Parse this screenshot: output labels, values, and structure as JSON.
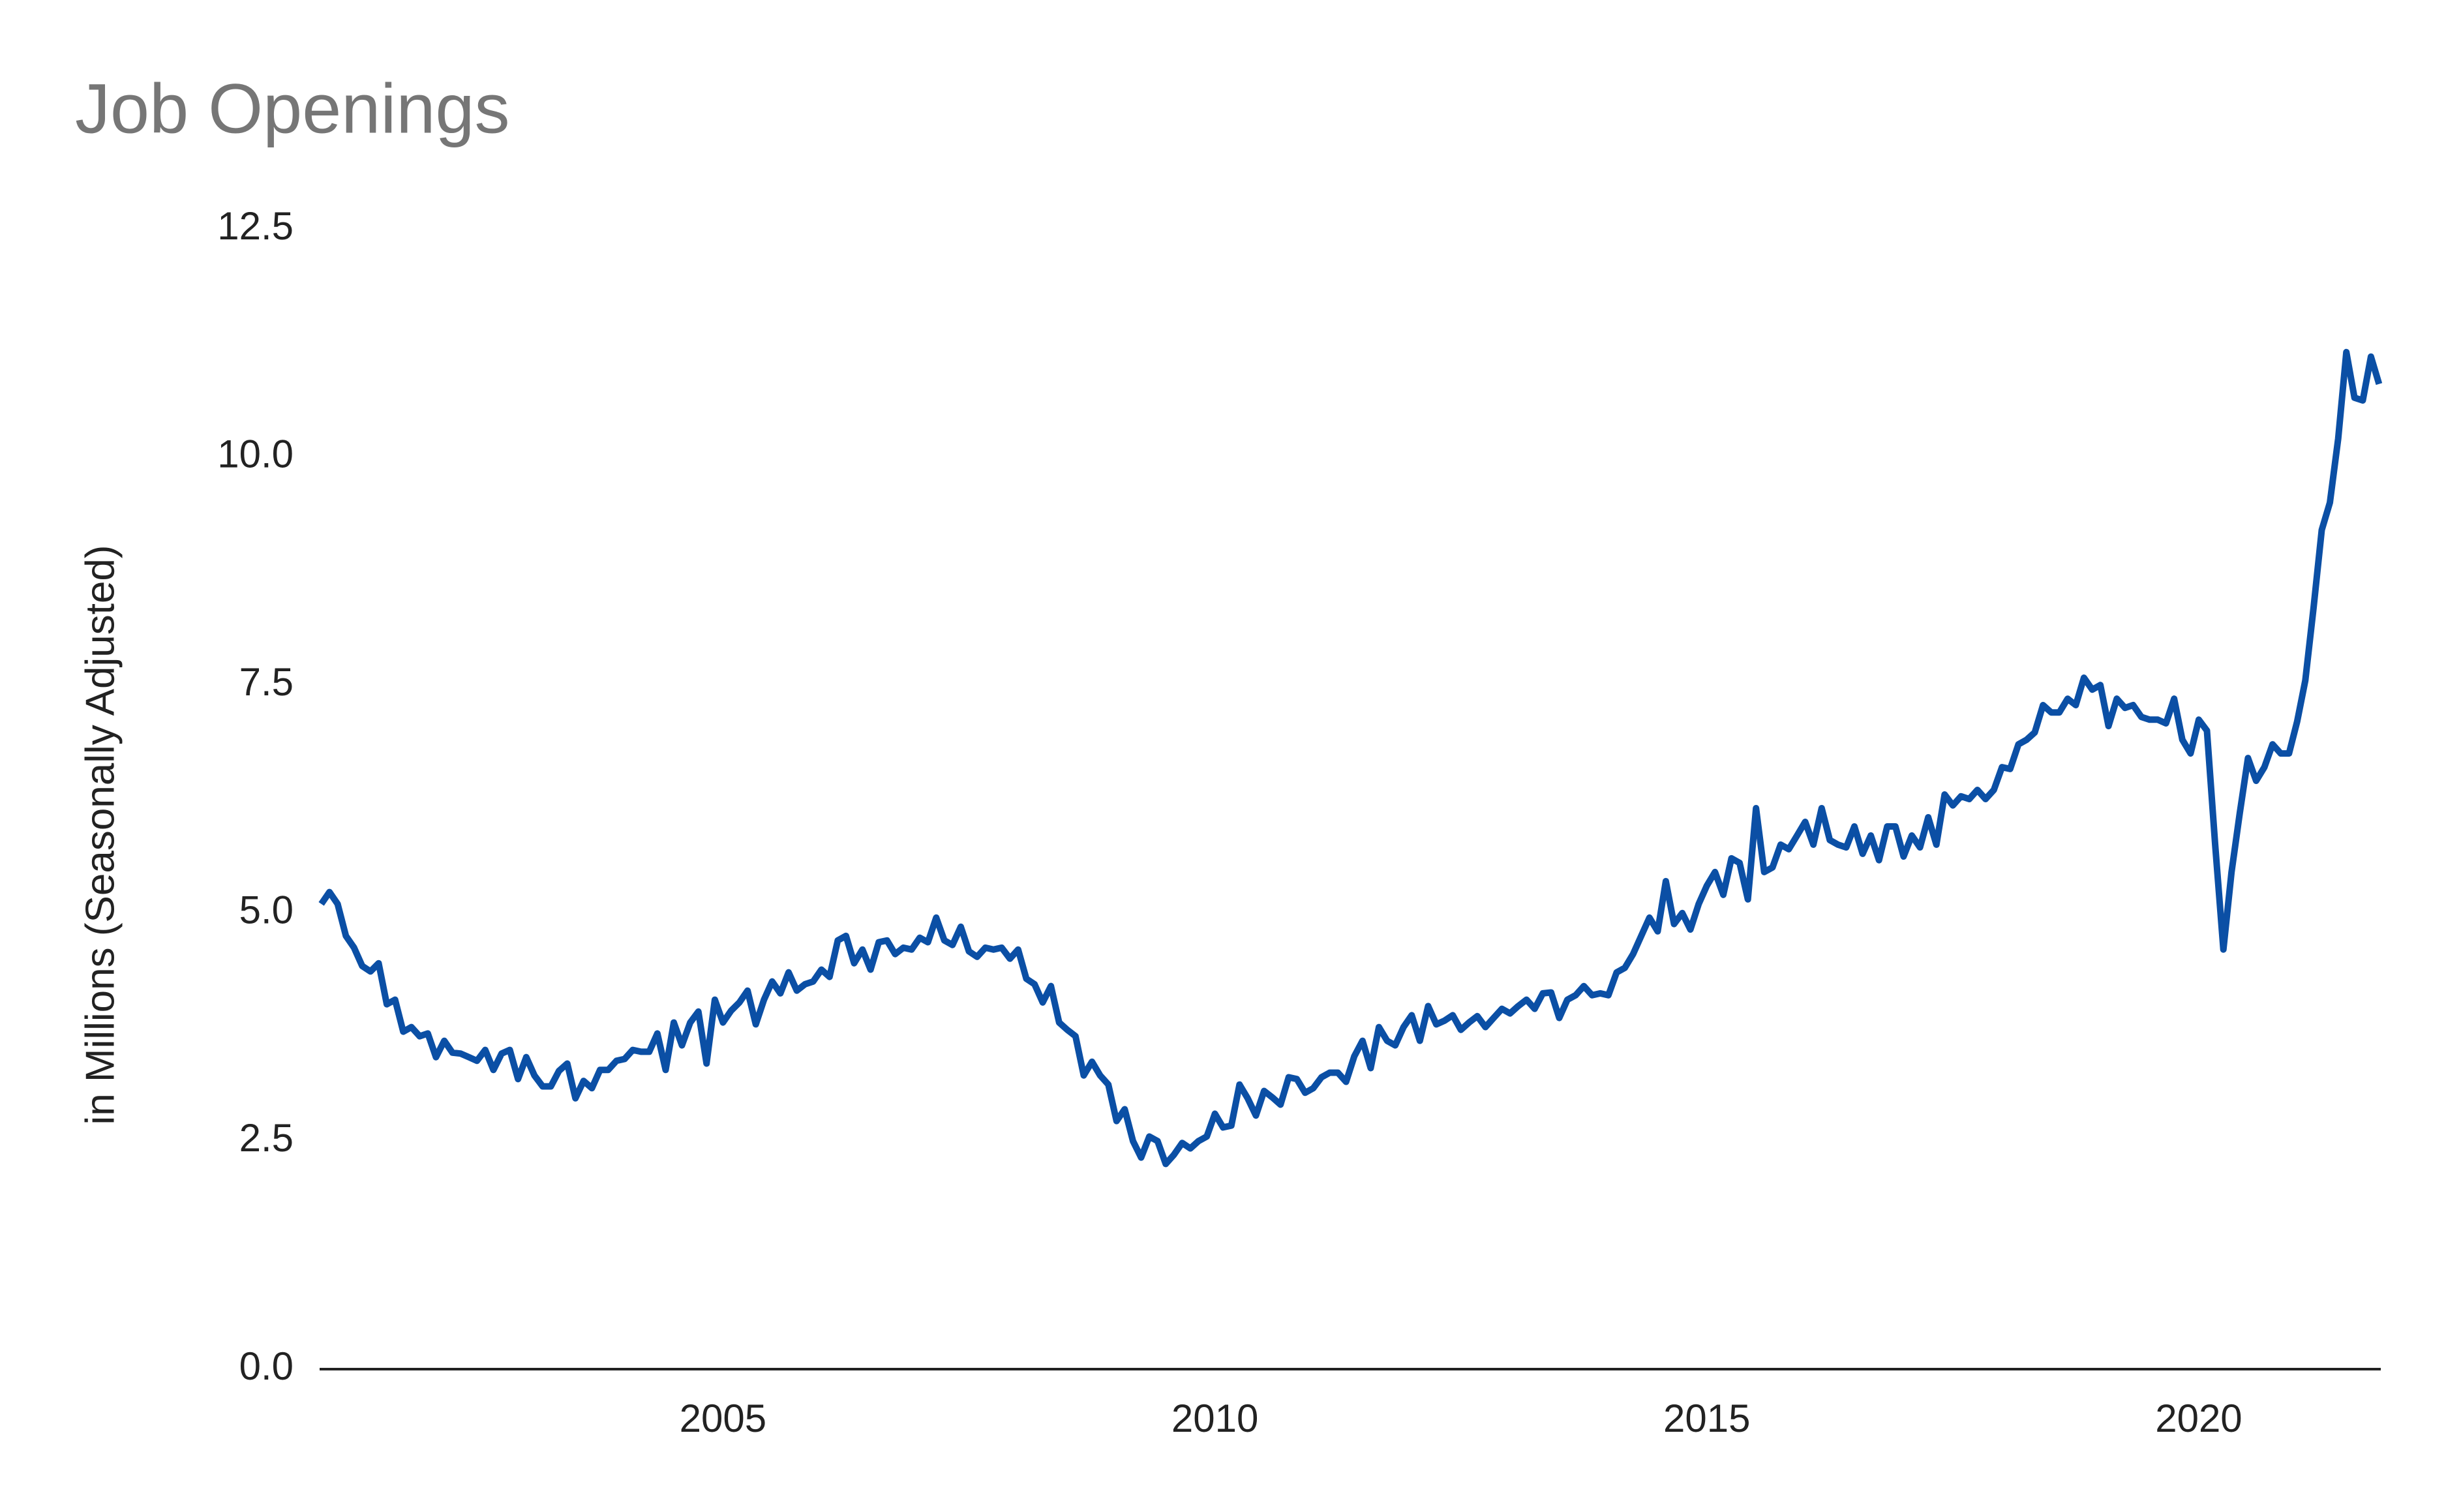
{
  "chart_data": {
    "type": "line",
    "title": "Job Openings",
    "ylabel": "in Millions (Seasonally Adjusted)",
    "color": "#0b4fa5",
    "xlim": [
      2000.9,
      2021.85
    ],
    "xticks": [
      2005,
      2010,
      2015,
      2020
    ],
    "ylim": [
      0,
      12.5
    ],
    "yticks": [
      {
        "value": 0,
        "label": "0.0"
      },
      2.5,
      {
        "value": 5,
        "label": "5.0"
      },
      7.5,
      {
        "value": 10,
        "label": "10.0"
      },
      12.5
    ],
    "grid": false,
    "x": [
      2000.917,
      2001,
      2001.083,
      2001.167,
      2001.25,
      2001.333,
      2001.417,
      2001.5,
      2001.583,
      2001.667,
      2001.75,
      2001.833,
      2001.917,
      2002,
      2002.083,
      2002.167,
      2002.25,
      2002.333,
      2002.417,
      2002.5,
      2002.583,
      2002.667,
      2002.75,
      2002.833,
      2002.917,
      2003,
      2003.083,
      2003.167,
      2003.25,
      2003.333,
      2003.417,
      2003.5,
      2003.583,
      2003.667,
      2003.75,
      2003.833,
      2003.917,
      2004,
      2004.083,
      2004.167,
      2004.25,
      2004.333,
      2004.417,
      2004.5,
      2004.583,
      2004.667,
      2004.75,
      2004.833,
      2004.917,
      2005,
      2005.083,
      2005.167,
      2005.25,
      2005.333,
      2005.417,
      2005.5,
      2005.583,
      2005.667,
      2005.75,
      2005.833,
      2005.917,
      2006,
      2006.083,
      2006.167,
      2006.25,
      2006.333,
      2006.417,
      2006.5,
      2006.583,
      2006.667,
      2006.75,
      2006.833,
      2006.917,
      2007,
      2007.083,
      2007.167,
      2007.25,
      2007.333,
      2007.417,
      2007.5,
      2007.583,
      2007.667,
      2007.75,
      2007.833,
      2007.917,
      2008,
      2008.083,
      2008.167,
      2008.25,
      2008.333,
      2008.417,
      2008.5,
      2008.583,
      2008.667,
      2008.75,
      2008.833,
      2008.917,
      2009,
      2009.083,
      2009.167,
      2009.25,
      2009.333,
      2009.417,
      2009.5,
      2009.583,
      2009.667,
      2009.75,
      2009.833,
      2009.917,
      2010,
      2010.083,
      2010.167,
      2010.25,
      2010.333,
      2010.417,
      2010.5,
      2010.583,
      2010.667,
      2010.75,
      2010.833,
      2010.917,
      2011,
      2011.083,
      2011.167,
      2011.25,
      2011.333,
      2011.417,
      2011.5,
      2011.583,
      2011.667,
      2011.75,
      2011.833,
      2011.917,
      2012,
      2012.083,
      2012.167,
      2012.25,
      2012.333,
      2012.417,
      2012.5,
      2012.583,
      2012.667,
      2012.75,
      2012.833,
      2012.917,
      2013,
      2013.083,
      2013.167,
      2013.25,
      2013.333,
      2013.417,
      2013.5,
      2013.583,
      2013.667,
      2013.75,
      2013.833,
      2013.917,
      2014,
      2014.083,
      2014.167,
      2014.25,
      2014.333,
      2014.417,
      2014.5,
      2014.583,
      2014.667,
      2014.75,
      2014.833,
      2014.917,
      2015,
      2015.083,
      2015.167,
      2015.25,
      2015.333,
      2015.417,
      2015.5,
      2015.583,
      2015.667,
      2015.75,
      2015.833,
      2015.917,
      2016,
      2016.083,
      2016.167,
      2016.25,
      2016.333,
      2016.417,
      2016.5,
      2016.583,
      2016.667,
      2016.75,
      2016.833,
      2016.917,
      2017,
      2017.083,
      2017.167,
      2017.25,
      2017.333,
      2017.417,
      2017.5,
      2017.583,
      2017.667,
      2017.75,
      2017.833,
      2017.917,
      2018,
      2018.083,
      2018.167,
      2018.25,
      2018.333,
      2018.417,
      2018.5,
      2018.583,
      2018.667,
      2018.75,
      2018.833,
      2018.917,
      2019,
      2019.083,
      2019.167,
      2019.25,
      2019.333,
      2019.417,
      2019.5,
      2019.583,
      2019.667,
      2019.75,
      2019.833,
      2019.917,
      2020,
      2020.083,
      2020.167,
      2020.25,
      2020.333,
      2020.417,
      2020.5,
      2020.583,
      2020.667,
      2020.75,
      2020.833,
      2020.917,
      2021,
      2021.083,
      2021.167,
      2021.25,
      2021.333,
      2021.417,
      2021.5,
      2021.583,
      2021.667,
      2021.75,
      2021.833
    ],
    "values": [
      5.1,
      5.23,
      5.1,
      4.75,
      4.62,
      4.42,
      4.36,
      4.45,
      4.0,
      4.05,
      3.7,
      3.75,
      3.65,
      3.68,
      3.42,
      3.6,
      3.47,
      3.46,
      3.42,
      3.38,
      3.5,
      3.28,
      3.46,
      3.5,
      3.18,
      3.42,
      3.22,
      3.1,
      3.1,
      3.27,
      3.35,
      2.97,
      3.16,
      3.08,
      3.28,
      3.28,
      3.38,
      3.4,
      3.5,
      3.48,
      3.48,
      3.68,
      3.28,
      3.8,
      3.55,
      3.8,
      3.92,
      3.35,
      4.05,
      3.8,
      3.93,
      4.02,
      4.15,
      3.78,
      4.05,
      4.25,
      4.12,
      4.35,
      4.15,
      4.22,
      4.25,
      4.38,
      4.3,
      4.7,
      4.75,
      4.45,
      4.6,
      4.38,
      4.68,
      4.7,
      4.55,
      4.62,
      4.6,
      4.73,
      4.68,
      4.95,
      4.7,
      4.65,
      4.85,
      4.58,
      4.52,
      4.62,
      4.6,
      4.62,
      4.5,
      4.6,
      4.28,
      4.22,
      4.02,
      4.2,
      3.8,
      3.72,
      3.65,
      3.22,
      3.37,
      3.22,
      3.12,
      2.72,
      2.85,
      2.5,
      2.32,
      2.55,
      2.5,
      2.25,
      2.35,
      2.48,
      2.42,
      2.5,
      2.55,
      2.8,
      2.65,
      2.67,
      3.12,
      2.97,
      2.78,
      3.05,
      2.98,
      2.9,
      3.2,
      3.18,
      3.03,
      3.08,
      3.2,
      3.25,
      3.25,
      3.15,
      3.43,
      3.6,
      3.3,
      3.75,
      3.6,
      3.55,
      3.75,
      3.88,
      3.6,
      3.98,
      3.78,
      3.82,
      3.88,
      3.72,
      3.8,
      3.87,
      3.75,
      3.85,
      3.95,
      3.9,
      3.98,
      4.05,
      3.95,
      4.12,
      4.13,
      3.85,
      4.05,
      4.1,
      4.2,
      4.1,
      4.12,
      4.1,
      4.35,
      4.4,
      4.55,
      4.75,
      4.95,
      4.8,
      5.35,
      4.88,
      5.0,
      4.82,
      5.1,
      5.3,
      5.45,
      5.2,
      5.6,
      5.55,
      5.15,
      6.15,
      5.45,
      5.5,
      5.75,
      5.7,
      5.85,
      6.0,
      5.75,
      6.15,
      5.8,
      5.75,
      5.72,
      5.95,
      5.65,
      5.85,
      5.58,
      5.95,
      5.95,
      5.62,
      5.85,
      5.72,
      6.05,
      5.75,
      6.3,
      6.18,
      6.28,
      6.25,
      6.35,
      6.25,
      6.35,
      6.6,
      6.58,
      6.85,
      6.9,
      6.98,
      7.28,
      7.2,
      7.2,
      7.35,
      7.28,
      7.58,
      7.45,
      7.5,
      7.05,
      7.35,
      7.25,
      7.28,
      7.15,
      7.12,
      7.12,
      7.08,
      7.35,
      6.9,
      6.75,
      7.12,
      7.0,
      5.75,
      4.6,
      5.45,
      6.1,
      6.7,
      6.45,
      6.6,
      6.85,
      6.75,
      6.75,
      7.1,
      7.55,
      8.35,
      9.2,
      9.5,
      10.2,
      11.15,
      10.65,
      10.62,
      11.1,
      10.8
    ]
  }
}
